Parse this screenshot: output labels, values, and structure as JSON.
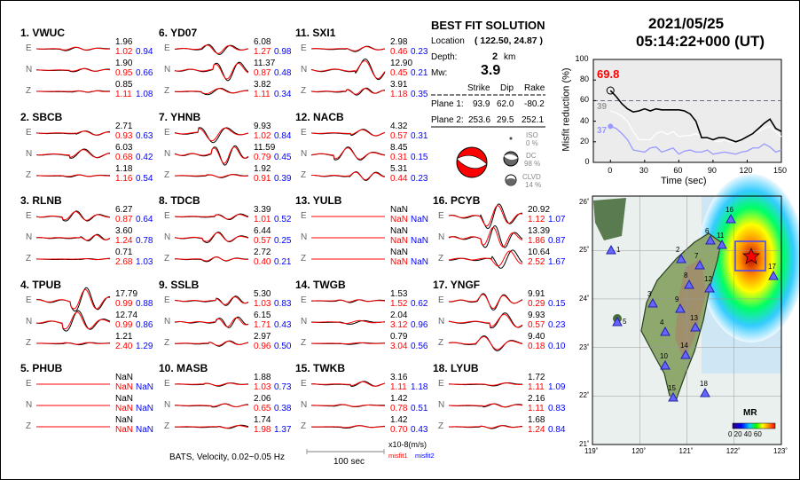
{
  "colors": {
    "observed": "#000000",
    "synthetic": "#ff0000",
    "misfit1": "#ff0000",
    "misfit2": "#0000ff",
    "event": "#ff0000"
  },
  "stations": [
    {
      "label": "1.  VWUC",
      "comps": [
        [
          "E",
          "1.96",
          "1.02",
          "0.94"
        ],
        [
          "N",
          "1.90",
          "0.95",
          "0.66"
        ],
        [
          "Z",
          "0.85",
          "1.11",
          "1.08"
        ]
      ]
    },
    {
      "label": "2.  SBCB",
      "comps": [
        [
          "E",
          "2.71",
          "0.93",
          "0.63"
        ],
        [
          "N",
          "6.03",
          "0.68",
          "0.42"
        ],
        [
          "Z",
          "1.18",
          "1.16",
          "0.54"
        ]
      ]
    },
    {
      "label": "3.  RLNB",
      "comps": [
        [
          "E",
          "6.27",
          "0.87",
          "0.64"
        ],
        [
          "N",
          "3.60",
          "1.24",
          "0.78"
        ],
        [
          "Z",
          "0.71",
          "2.68",
          "1.03"
        ]
      ]
    },
    {
      "label": "4.  TPUB",
      "comps": [
        [
          "E",
          "17.79",
          "0.99",
          "0.88"
        ],
        [
          "N",
          "12.74",
          "0.99",
          "0.86"
        ],
        [
          "Z",
          "1.21",
          "2.40",
          "1.29"
        ]
      ]
    },
    {
      "label": "5.  PHUB",
      "comps": [
        [
          "E",
          "NaN",
          "NaN",
          "NaN"
        ],
        [
          "N",
          "NaN",
          "NaN",
          "NaN"
        ],
        [
          "Z",
          "NaN",
          "NaN",
          "NaN"
        ]
      ]
    },
    {
      "label": "6.  YD07",
      "comps": [
        [
          "E",
          "6.08",
          "1.27",
          "0.98"
        ],
        [
          "N",
          "11.37",
          "0.87",
          "0.48"
        ],
        [
          "Z",
          "3.82",
          "1.11",
          "0.34"
        ]
      ]
    },
    {
      "label": "7.  YHNB",
      "comps": [
        [
          "E",
          "9.93",
          "1.02",
          "0.84"
        ],
        [
          "N",
          "11.59",
          "0.79",
          "0.45"
        ],
        [
          "Z",
          "1.92",
          "0.91",
          "0.39"
        ]
      ]
    },
    {
      "label": "8.  TDCB",
      "comps": [
        [
          "E",
          "3.39",
          "1.01",
          "0.52"
        ],
        [
          "N",
          "6.44",
          "0.57",
          "0.25"
        ],
        [
          "Z",
          "2.72",
          "0.40",
          "0.21"
        ]
      ]
    },
    {
      "label": "9.  SSLB",
      "comps": [
        [
          "E",
          "5.30",
          "1.03",
          "0.83"
        ],
        [
          "N",
          "6.15",
          "1.71",
          "0.43"
        ],
        [
          "Z",
          "2.97",
          "0.96",
          "0.50"
        ]
      ]
    },
    {
      "label": "10. MASB",
      "comps": [
        [
          "E",
          "1.88",
          "1.03",
          "0.73"
        ],
        [
          "N",
          "2.06",
          "0.65",
          "0.38"
        ],
        [
          "Z",
          "1.74",
          "1.98",
          "1.37"
        ]
      ]
    },
    {
      "label": "11. SXI1",
      "comps": [
        [
          "E",
          "2.98",
          "0.46",
          "0.23"
        ],
        [
          "N",
          "12.90",
          "0.45",
          "0.21"
        ],
        [
          "Z",
          "3.91",
          "1.18",
          "0.35"
        ]
      ]
    },
    {
      "label": "12. NACB",
      "comps": [
        [
          "E",
          "4.32",
          "0.57",
          "0.31"
        ],
        [
          "N",
          "8.45",
          "0.31",
          "0.15"
        ],
        [
          "Z",
          "5.31",
          "0.44",
          "0.23"
        ]
      ]
    },
    {
      "label": "13. YULB",
      "comps": [
        [
          "E",
          "NaN",
          "NaN",
          "NaN"
        ],
        [
          "N",
          "NaN",
          "NaN",
          "NaN"
        ],
        [
          "Z",
          "NaN",
          "NaN",
          "NaN"
        ]
      ]
    },
    {
      "label": "14. TWGB",
      "comps": [
        [
          "E",
          "1.53",
          "1.52",
          "0.62"
        ],
        [
          "N",
          "2.04",
          "3.12",
          "0.96"
        ],
        [
          "Z",
          "0.79",
          "3.04",
          "0.56"
        ]
      ]
    },
    {
      "label": "15. TWKB",
      "comps": [
        [
          "E",
          "3.16",
          "1.11",
          "1.18"
        ],
        [
          "N",
          "1.42",
          "0.78",
          "0.51"
        ],
        [
          "Z",
          "1.42",
          "0.70",
          "0.43"
        ]
      ]
    },
    {
      "label": "16. PCYB",
      "comps": [
        [
          "E",
          "20.92",
          "1.12",
          "1.07"
        ],
        [
          "N",
          "13.39",
          "1.86",
          "0.87"
        ],
        [
          "Z",
          "10.64",
          "2.52",
          "1.67"
        ]
      ]
    },
    {
      "label": "17. YNGF",
      "comps": [
        [
          "E",
          "9.91",
          "0.29",
          "0.15"
        ],
        [
          "N",
          "9.93",
          "0.57",
          "0.23"
        ],
        [
          "Z",
          "9.40",
          "0.18",
          "0.10"
        ]
      ]
    },
    {
      "label": "18. LYUB",
      "comps": [
        [
          "E",
          "1.72",
          "1.11",
          "1.09"
        ],
        [
          "N",
          "2.16",
          "1.11",
          "0.83"
        ],
        [
          "Z",
          "1.68",
          "1.24",
          "0.84"
        ]
      ]
    }
  ],
  "footer": {
    "caption": "BATS, Velocity, 0.02~0.05 Hz",
    "scale": "100 sec",
    "units": "x10-8(m/s)",
    "misfit1": "misfit1",
    "misfit2": "misfit2"
  },
  "solution": {
    "title": "BEST FIT SOLUTION",
    "location_label": "Location",
    "location": "( 122.50,  24.87 )",
    "depth_label": "Depth:",
    "depth": "2",
    "depth_unit": "km",
    "mw_label": "Mw:",
    "mw": "3.9",
    "headers": [
      "Strike",
      "Dip",
      "Rake"
    ],
    "planes": [
      {
        "label": "Plane 1:",
        "vals": [
          "93.9",
          "62.0",
          "-80.2"
        ]
      },
      {
        "label": "Plane 2:",
        "vals": [
          "253.6",
          "29.5",
          "252.1"
        ]
      }
    ],
    "iso_label": "ISO",
    "iso": "0 %",
    "dc_label": "DC",
    "dc": "98 %",
    "clvd_label": "CLVD",
    "clvd": "14 %"
  },
  "event": {
    "date": "2021/05/25",
    "time": "05:14:22+000  (UT)"
  },
  "chart_data": {
    "type": "line",
    "xlabel": "Time (sec)",
    "ylabel": "Misfit reduction (%)",
    "xlim": [
      -15,
      150
    ],
    "ylim": [
      0,
      100
    ],
    "xticks": [
      0,
      30,
      60,
      90,
      120,
      150
    ],
    "yticks": [
      0,
      20,
      40,
      60,
      80,
      100
    ],
    "threshold": 60,
    "grid": false,
    "x": [
      0,
      5,
      10,
      15,
      20,
      25,
      30,
      35,
      40,
      45,
      50,
      55,
      60,
      65,
      70,
      75,
      80,
      85,
      90,
      95,
      100,
      105,
      110,
      115,
      120,
      125,
      130,
      135,
      140,
      145,
      150
    ],
    "series": [
      {
        "color": "#000000",
        "label": "69.8",
        "label_color": "#ff0000",
        "values": [
          69.8,
          64,
          57,
          52,
          49,
          50,
          52,
          50,
          52,
          51,
          51,
          51,
          51,
          50,
          47,
          40,
          24,
          24,
          22,
          24,
          24,
          22,
          20,
          22,
          25,
          28,
          33,
          38,
          42,
          33,
          30
        ]
      },
      {
        "color": "#ffffff",
        "label": "39",
        "label_color": "#999999",
        "values": [
          50,
          48,
          45,
          40,
          30,
          22,
          22,
          22,
          28,
          30,
          27,
          30,
          25,
          26,
          26,
          28,
          25,
          22,
          21,
          20,
          22,
          20,
          20,
          24,
          25,
          28,
          30,
          33,
          35,
          30,
          25
        ]
      },
      {
        "color": "#9999ff",
        "label": "37",
        "label_color": "#9999ff",
        "values": [
          35,
          33,
          28,
          22,
          12,
          11,
          10,
          14,
          15,
          10,
          12,
          14,
          8,
          11,
          12,
          10,
          10,
          12,
          8,
          9,
          10,
          9,
          8,
          10,
          11,
          14,
          14,
          18,
          15,
          10,
          12
        ]
      }
    ]
  },
  "map": {
    "lon_ticks": [
      "119˚",
      "120˚",
      "121˚",
      "122˚",
      "123˚"
    ],
    "lat_ticks": [
      "21˚",
      "22˚",
      "23˚",
      "24˚",
      "25˚",
      "26˚"
    ],
    "legend_title": "MR",
    "legend_ticks": "0 20 40 60",
    "station_labels": [
      "1",
      "2",
      "3",
      "4",
      "5",
      "6",
      "7",
      "8",
      "9",
      "10",
      "11",
      "12",
      "13",
      "14",
      "15",
      "16",
      "17",
      "18"
    ]
  }
}
